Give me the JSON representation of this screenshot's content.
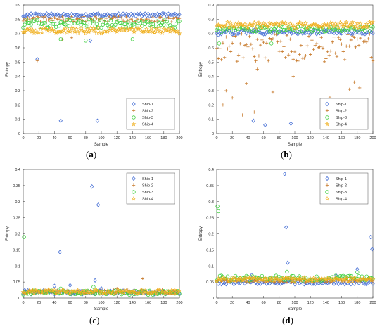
{
  "colors": {
    "Ship-1": "#4a72d6",
    "Ship-2": "#c77a2c",
    "Ship-3": "#3fcf3f",
    "Ship-4": "#f0b020"
  },
  "chart_data": [
    {
      "type": "scatter",
      "panel": "a",
      "caption": {
        "open": "(",
        "letter": "a",
        "close": ")"
      },
      "xlabel": "Sample",
      "ylabel": "Entropy",
      "xlim": [
        0,
        200
      ],
      "ylim": [
        0,
        0.9
      ],
      "xticks": [
        "0",
        "20",
        "40",
        "60",
        "80",
        "100",
        "120",
        "140",
        "160",
        "180",
        "200"
      ],
      "yticks": [
        "0",
        "0.1",
        "0.2",
        "0.3",
        "0.4",
        "0.5",
        "0.6",
        "0.7",
        "0.8",
        "0.9"
      ],
      "grid": false,
      "legend_position": "bottom-right",
      "series": [
        {
          "name": "Ship-1",
          "marker": "diamond",
          "base": 0.83,
          "spread": 0.01,
          "outliers": [
            [
              18,
              0.52
            ],
            [
              48,
              0.09
            ],
            [
              86,
              0.65
            ],
            [
              95,
              0.09
            ]
          ]
        },
        {
          "name": "Ship-2",
          "marker": "plus",
          "base": 0.8,
          "spread": 0.02,
          "outliers": [
            [
              18,
              0.51
            ],
            [
              50,
              0.66
            ],
            [
              62,
              0.67
            ]
          ]
        },
        {
          "name": "Ship-3",
          "marker": "circle",
          "base": 0.77,
          "spread": 0.03,
          "outliers": [
            [
              48,
              0.66
            ],
            [
              80,
              0.65
            ],
            [
              140,
              0.66
            ]
          ]
        },
        {
          "name": "Ship-4",
          "marker": "star",
          "base": 0.72,
          "spread": 0.02,
          "outliers": []
        }
      ]
    },
    {
      "type": "scatter",
      "panel": "b",
      "caption": {
        "open": "(",
        "letter": "b",
        "close": ")"
      },
      "xlabel": "Sample",
      "ylabel": "Entropy",
      "xlim": [
        0,
        200
      ],
      "ylim": [
        0,
        0.9
      ],
      "xticks": [
        "0",
        "20",
        "40",
        "60",
        "80",
        "100",
        "120",
        "140",
        "160",
        "180",
        "200"
      ],
      "yticks": [
        "0",
        "0.1",
        "0.2",
        "0.3",
        "0.4",
        "0.5",
        "0.6",
        "0.7",
        "0.8",
        "0.9"
      ],
      "grid": false,
      "legend_position": "bottom-right",
      "series": [
        {
          "name": "Ship-1",
          "marker": "diamond",
          "base": 0.71,
          "spread": 0.015,
          "outliers": [
            [
              2,
              0.69
            ],
            [
              47,
              0.09
            ],
            [
              62,
              0.06
            ],
            [
              95,
              0.07
            ]
          ]
        },
        {
          "name": "Ship-2",
          "marker": "plus",
          "base": 0.6,
          "spread": 0.1,
          "outliers": [
            [
              8,
              0.2
            ],
            [
              12,
              0.3
            ],
            [
              20,
              0.25
            ],
            [
              33,
              0.13
            ],
            [
              48,
              0.15
            ],
            [
              72,
              0.29
            ],
            [
              98,
              0.4
            ],
            [
              145,
              0.25
            ],
            [
              150,
              0.1
            ],
            [
              170,
              0.31
            ],
            [
              176,
              0.36
            ],
            [
              183,
              0.32
            ],
            [
              52,
              0.45
            ],
            [
              38,
              0.35
            ]
          ]
        },
        {
          "name": "Ship-3",
          "marker": "circle",
          "base": 0.73,
          "spread": 0.02,
          "outliers": [
            [
              3,
              0.63
            ],
            [
              70,
              0.63
            ]
          ]
        },
        {
          "name": "Ship-4",
          "marker": "star",
          "base": 0.76,
          "spread": 0.02,
          "outliers": []
        }
      ]
    },
    {
      "type": "scatter",
      "panel": "c",
      "caption": {
        "open": "(",
        "letter": "c",
        "close": ")"
      },
      "xlabel": "Sample",
      "ylabel": "Entropy",
      "xlim": [
        0,
        200
      ],
      "ylim": [
        0,
        0.4
      ],
      "xticks": [
        "0",
        "20",
        "40",
        "60",
        "80",
        "100",
        "120",
        "140",
        "160",
        "180",
        "200"
      ],
      "yticks": [
        "0",
        "0.05",
        "0.1",
        "0.15",
        "0.2",
        "0.25",
        "0.3",
        "0.35",
        "0.4"
      ],
      "grid": false,
      "legend_position": "top-right",
      "series": [
        {
          "name": "Ship-1",
          "marker": "diamond",
          "base": 0.018,
          "spread": 0.006,
          "outliers": [
            [
              2,
              0.025
            ],
            [
              40,
              0.038
            ],
            [
              47,
              0.143
            ],
            [
              60,
              0.04
            ],
            [
              88,
              0.347
            ],
            [
              92,
              0.055
            ],
            [
              96,
              0.29
            ],
            [
              100,
              0.03
            ]
          ]
        },
        {
          "name": "Ship-2",
          "marker": "plus",
          "base": 0.02,
          "spread": 0.006,
          "outliers": [
            [
              153,
              0.06
            ],
            [
              120,
              0.03
            ]
          ]
        },
        {
          "name": "Ship-3",
          "marker": "circle",
          "base": 0.017,
          "spread": 0.007,
          "outliers": [
            [
              1,
              0.19
            ],
            [
              48,
              0.03
            ],
            [
              90,
              0.035
            ]
          ]
        },
        {
          "name": "Ship-4",
          "marker": "star",
          "base": 0.02,
          "spread": 0.006,
          "outliers": []
        }
      ]
    },
    {
      "type": "scatter",
      "panel": "d",
      "caption": {
        "open": "(",
        "letter": "d",
        "close": ")"
      },
      "xlabel": "Sample",
      "ylabel": "Entropy",
      "xlim": [
        0,
        200
      ],
      "ylim": [
        0,
        0.4
      ],
      "xticks": [
        "0",
        "20",
        "40",
        "60",
        "80",
        "100",
        "120",
        "140",
        "160",
        "180",
        "200"
      ],
      "yticks": [
        "0",
        "0.05",
        "0.1",
        "0.15",
        "0.2",
        "0.25",
        "0.3",
        "0.35",
        "0.4"
      ],
      "grid": false,
      "legend_position": "top-right",
      "series": [
        {
          "name": "Ship-1",
          "marker": "diamond",
          "base": 0.048,
          "spread": 0.005,
          "outliers": [
            [
              45,
              0.072
            ],
            [
              87,
              0.386
            ],
            [
              89,
              0.22
            ],
            [
              91,
              0.11
            ],
            [
              153,
              0.07
            ],
            [
              180,
              0.09
            ],
            [
              197,
              0.19
            ],
            [
              199,
              0.152
            ]
          ]
        },
        {
          "name": "Ship-2",
          "marker": "plus",
          "base": 0.055,
          "spread": 0.007,
          "outliers": []
        },
        {
          "name": "Ship-3",
          "marker": "circle",
          "base": 0.062,
          "spread": 0.008,
          "outliers": [
            [
              1,
              0.285
            ],
            [
              2,
              0.27
            ],
            [
              90,
              0.082
            ],
            [
              180,
              0.08
            ]
          ]
        },
        {
          "name": "Ship-4",
          "marker": "star",
          "base": 0.058,
          "spread": 0.006,
          "outliers": []
        }
      ]
    }
  ]
}
